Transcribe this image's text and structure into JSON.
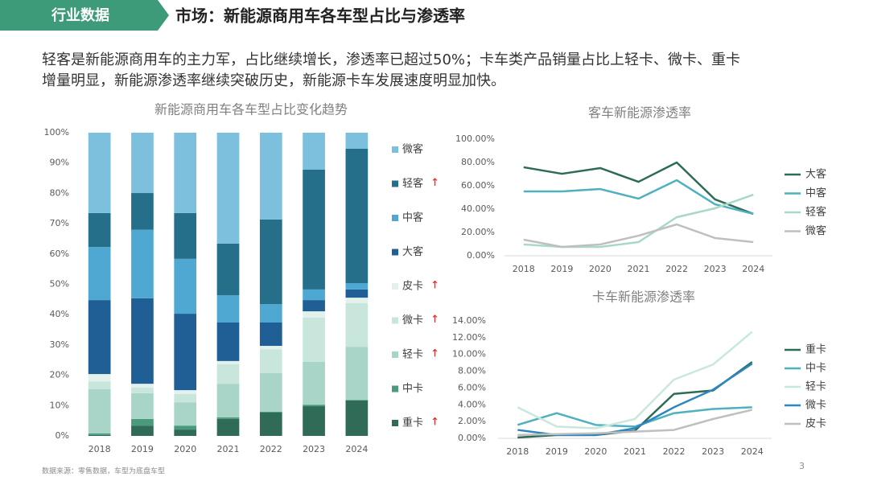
{
  "header": {
    "tab": "行业数据",
    "title": "市场：新能源商用车各车型占比与渗透率"
  },
  "description": [
    "轻客是新能源商用车的主力军，占比继续增长，渗透率已超过50%；卡车类产品销量占比上轻卡、微卡、重卡",
    "增量明显，新能源渗透率继续突破历史，新能源卡车发展速度明显加快。"
  ],
  "source": "数据来源：零售数据，车型为底盘车型",
  "page_number": 3,
  "chart_data": [
    {
      "type": "stacked_bar",
      "title": "新能源商用车各车型占比变化趋势",
      "categories": [
        "2018",
        "2019",
        "2020",
        "2021",
        "2022",
        "2023",
        "2024"
      ],
      "ylim": [
        0,
        100
      ],
      "yticks": [
        {
          "value": 0,
          "label": "0%"
        },
        {
          "value": 10,
          "label": "10%"
        },
        {
          "value": 20,
          "label": "20%"
        },
        {
          "value": 30,
          "label": "30%"
        },
        {
          "value": 40,
          "label": "40%"
        },
        {
          "value": 50,
          "label": "50%"
        },
        {
          "value": 60,
          "label": "60%"
        },
        {
          "value": 70,
          "label": "70%"
        },
        {
          "value": 80,
          "label": "80%"
        },
        {
          "value": 90,
          "label": "90%"
        },
        {
          "value": 100,
          "label": "100%"
        }
      ],
      "grid": false,
      "series": [
        {
          "name": "重卡",
          "color": "#2f6b57",
          "annotation": "↑",
          "values": [
            0.3,
            3.4,
            2.1,
            5.6,
            7.7,
            9.8,
            11.7
          ]
        },
        {
          "name": "中卡",
          "color": "#4a9a7e",
          "values": [
            0.5,
            2.2,
            1.3,
            0.5,
            0.3,
            0.5,
            0.2
          ]
        },
        {
          "name": "轻卡",
          "color": "#a8d5c8",
          "annotation": "↑",
          "values": [
            14.6,
            8.5,
            7.7,
            11.1,
            12.7,
            14.1,
            17.5
          ]
        },
        {
          "name": "微卡",
          "color": "#c8e6dc",
          "annotation": "↑",
          "values": [
            2.6,
            1.8,
            2.7,
            6.4,
            7.9,
            14.6,
            14.4
          ]
        },
        {
          "name": "皮卡",
          "color": "#e2f1ec",
          "annotation": "↑",
          "values": [
            2.4,
            1.3,
            1.3,
            1.1,
            1.1,
            2.1,
            1.8
          ]
        },
        {
          "name": "大客",
          "color": "#1f5f96",
          "values": [
            24.4,
            28.2,
            25.2,
            12.7,
            7.7,
            3.7,
            2.7
          ]
        },
        {
          "name": "中客",
          "color": "#4fa8d1",
          "values": [
            17.5,
            22.6,
            18.1,
            9.0,
            6.1,
            3.5,
            2.1
          ]
        },
        {
          "name": "轻客",
          "color": "#266f8b",
          "annotation": "↑",
          "values": [
            11.2,
            12.1,
            15.1,
            17.0,
            27.9,
            39.5,
            44.3
          ]
        },
        {
          "name": "微客",
          "color": "#7cc0dd",
          "values": [
            26.5,
            19.9,
            26.5,
            36.6,
            28.6,
            12.2,
            5.3
          ]
        }
      ]
    },
    {
      "type": "line",
      "title": "客车新能源渗透率",
      "categories": [
        "2018",
        "2019",
        "2020",
        "2021",
        "2022",
        "2023",
        "2024"
      ],
      "ylim": [
        0,
        100
      ],
      "yticks": [
        {
          "value": 0,
          "label": "0.00%"
        },
        {
          "value": 20,
          "label": "20.00%"
        },
        {
          "value": 40,
          "label": "40.00%"
        },
        {
          "value": 60,
          "label": "60.00%"
        },
        {
          "value": 80,
          "label": "80.00%"
        },
        {
          "value": 100,
          "label": "100.00%"
        }
      ],
      "grid": false,
      "series": [
        {
          "name": "大客",
          "color": "#2e6b57",
          "values": [
            75.9,
            70.3,
            75.2,
            63.4,
            80.0,
            48.3,
            35.9
          ]
        },
        {
          "name": "中客",
          "color": "#4fb0c0",
          "values": [
            55.2,
            55.2,
            57.2,
            49.0,
            64.8,
            44.1,
            35.9
          ]
        },
        {
          "name": "轻客",
          "color": "#a8d8c8",
          "values": [
            9.7,
            7.6,
            7.6,
            11.7,
            33.1,
            40.7,
            52.4
          ]
        },
        {
          "name": "微客",
          "color": "#bfbfbf",
          "values": [
            13.8,
            7.6,
            9.7,
            17.2,
            26.9,
            15.2,
            11.7
          ]
        }
      ]
    },
    {
      "type": "line",
      "title": "卡车新能源渗透率",
      "categories": [
        "2018",
        "2019",
        "2020",
        "2021",
        "2022",
        "2023",
        "2024"
      ],
      "ylim": [
        0,
        14
      ],
      "yticks": [
        {
          "value": 0,
          "label": "0.00%"
        },
        {
          "value": 2,
          "label": "2.00%"
        },
        {
          "value": 4,
          "label": "4.00%"
        },
        {
          "value": 6,
          "label": "6.00%"
        },
        {
          "value": 8,
          "label": "8.00%"
        },
        {
          "value": 10,
          "label": "10.00%"
        },
        {
          "value": 12,
          "label": "12.00%"
        },
        {
          "value": 14,
          "label": "14.00%"
        }
      ],
      "grid": false,
      "series": [
        {
          "name": "重卡",
          "color": "#2e6b57",
          "values": [
            0.1,
            0.4,
            0.4,
            0.9,
            5.3,
            5.7,
            9.1
          ]
        },
        {
          "name": "中卡",
          "color": "#4fb0c0",
          "values": [
            1.6,
            3.0,
            1.6,
            1.4,
            3.0,
            3.5,
            3.7
          ]
        },
        {
          "name": "轻卡",
          "color": "#c8e8dc",
          "values": [
            3.7,
            1.4,
            1.2,
            2.3,
            7.0,
            8.8,
            12.7
          ]
        },
        {
          "name": "微卡",
          "color": "#2e86c1",
          "values": [
            1.0,
            0.4,
            0.4,
            1.2,
            3.7,
            5.8,
            8.9
          ]
        },
        {
          "name": "皮卡",
          "color": "#bfbfbf",
          "values": [
            0.4,
            0.5,
            0.6,
            0.8,
            1.0,
            2.3,
            3.4
          ]
        }
      ]
    }
  ]
}
